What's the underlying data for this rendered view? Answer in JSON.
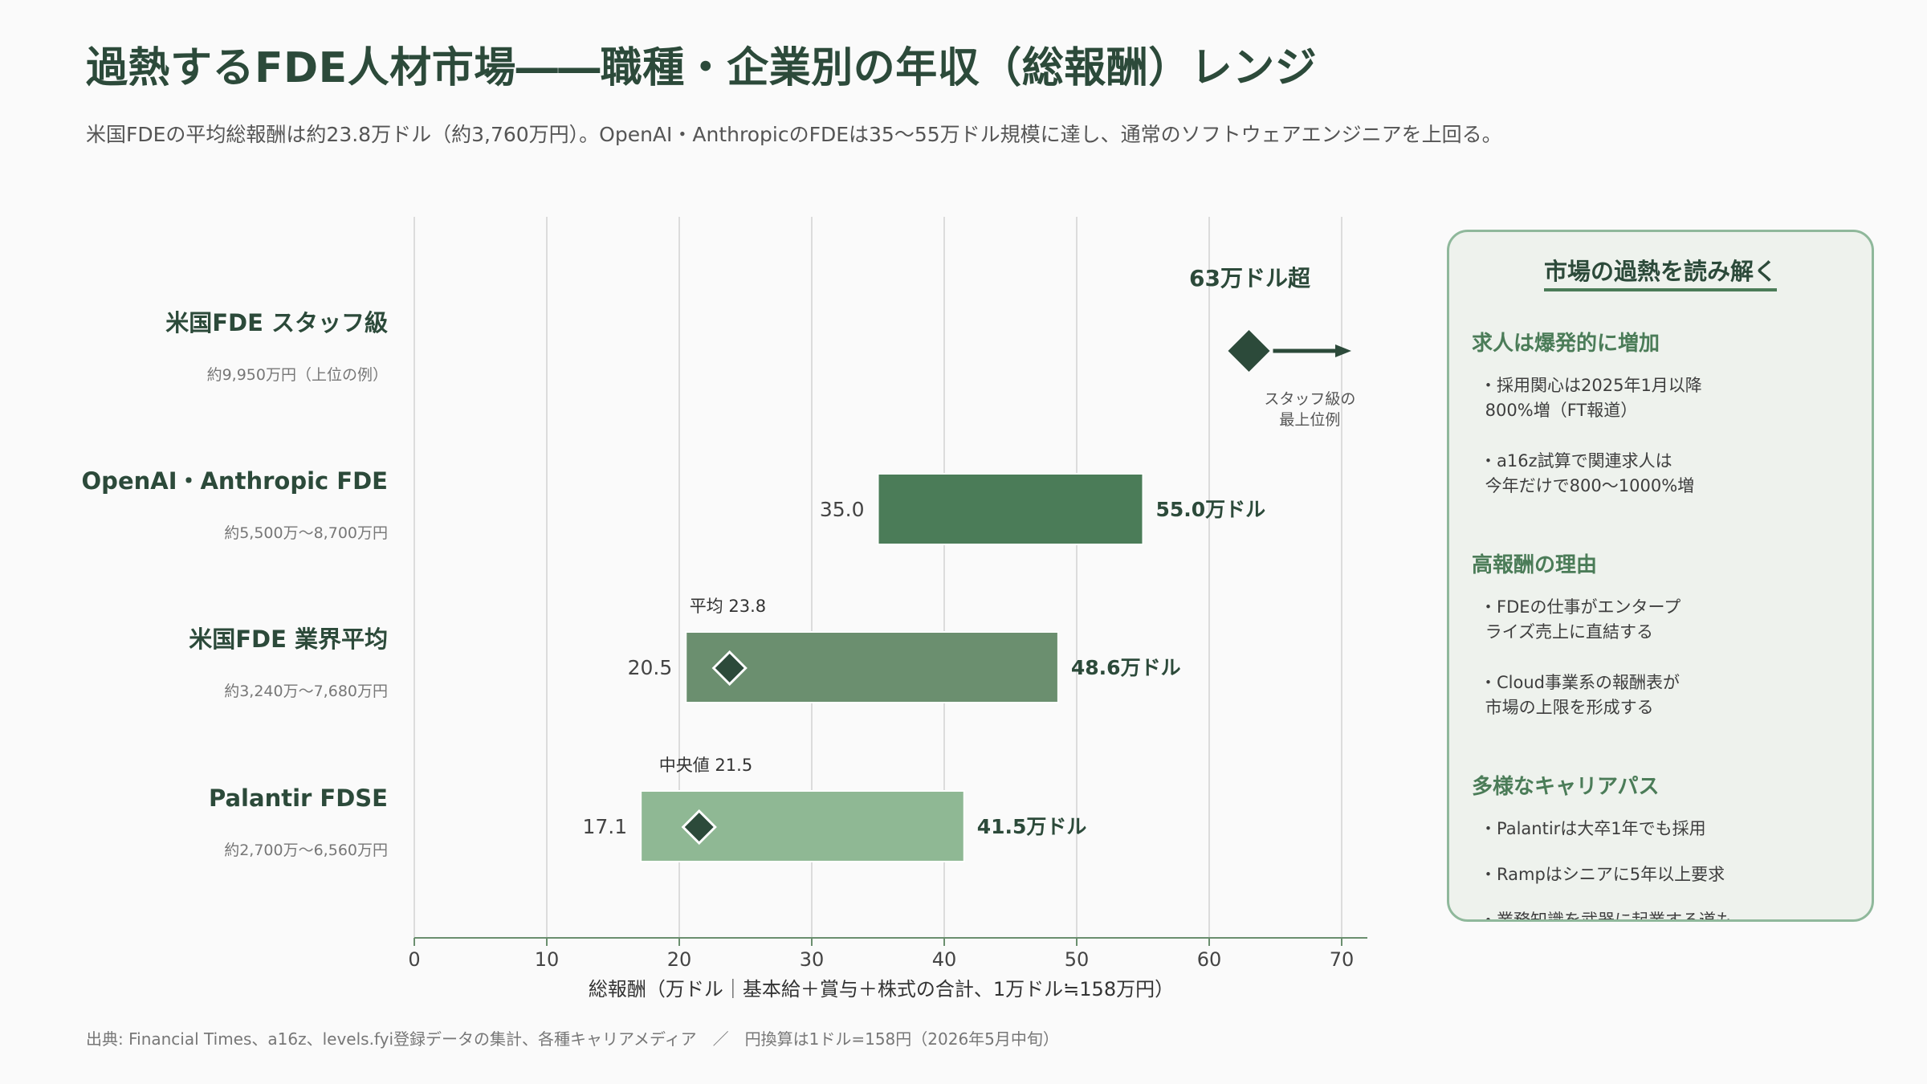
{
  "title": "過熱するFDE人材市場――職種・企業別の年収（総報酬）レンジ",
  "subtitle": "米国FDEの平均総報酬は約23.8万ドル（約3,760万円）。OpenAI・AnthropicのFDEは35〜55万ドル規模に達し、通常のソフトウェアエンジニアを上回る。",
  "source": "出典: Financial Times、a16z、levels.fyi登録データの集計、各種キャリアメディア　／　円換算は1ドル=158円（2026年5月中旬）",
  "colors": {
    "dark": "#2c4a3a",
    "bar_openai": "#4b7c58",
    "bar_us": "#6b8f6f",
    "bar_palantir": "#8fb894"
  },
  "chart_data": {
    "type": "bar",
    "orientation": "horizontal-range",
    "xlabel": "総報酬（万ドル｜基本給＋賞与＋株式の合計、1万ドル≒158万円）",
    "xlim": [
      0,
      72
    ],
    "xticks": [
      0,
      10,
      20,
      30,
      40,
      50,
      60,
      70
    ],
    "grid": true,
    "rows": [
      {
        "label": "米国FDE スタッフ級",
        "sublabel": "約9,950万円（上位の例）",
        "kind": "point",
        "point": 63,
        "point_label": "63万ドル超",
        "note_lines": [
          "スタッフ級の",
          "最上位例"
        ]
      },
      {
        "label": "OpenAI・Anthropic FDE",
        "sublabel": "約5,500万〜8,700万円",
        "kind": "range",
        "low": 35.0,
        "high": 55.0,
        "low_label": "35.0",
        "high_label": "55.0万ドル",
        "color": "#4b7c58"
      },
      {
        "label": "米国FDE 業界平均",
        "sublabel": "約3,240万〜7,680万円",
        "kind": "range",
        "low": 20.5,
        "high": 48.6,
        "low_label": "20.5",
        "high_label": "48.6万ドル",
        "color": "#6b8f6f",
        "marker": 23.8,
        "marker_label": "平均 23.8"
      },
      {
        "label": "Palantir FDSE",
        "sublabel": "約2,700万〜6,560万円",
        "kind": "range",
        "low": 17.1,
        "high": 41.5,
        "low_label": "17.1",
        "high_label": "41.5万ドル",
        "color": "#8fb894",
        "marker": 21.5,
        "marker_label": "中央値 21.5"
      }
    ]
  },
  "panel": {
    "title": "市場の過熱を読み解く",
    "sections": [
      {
        "heading": "求人は爆発的に増加",
        "items": [
          "・採用関心は2025年1月以降\n 800%増（FT報道）",
          "・a16z試算で関連求人は\n 今年だけで800〜1000%増"
        ]
      },
      {
        "heading": "高報酬の理由",
        "items": [
          "・FDEの仕事がエンタープ\n ライズ売上に直結する",
          "・Cloud事業系の報酬表が\n 市場の上限を形成する"
        ]
      },
      {
        "heading": "多様なキャリアパス",
        "items": [
          "・Palantirは大卒1年でも採用",
          "・Rampはシニアに5年以上要求",
          "・業務知識を武器に起業する道も"
        ]
      }
    ]
  }
}
